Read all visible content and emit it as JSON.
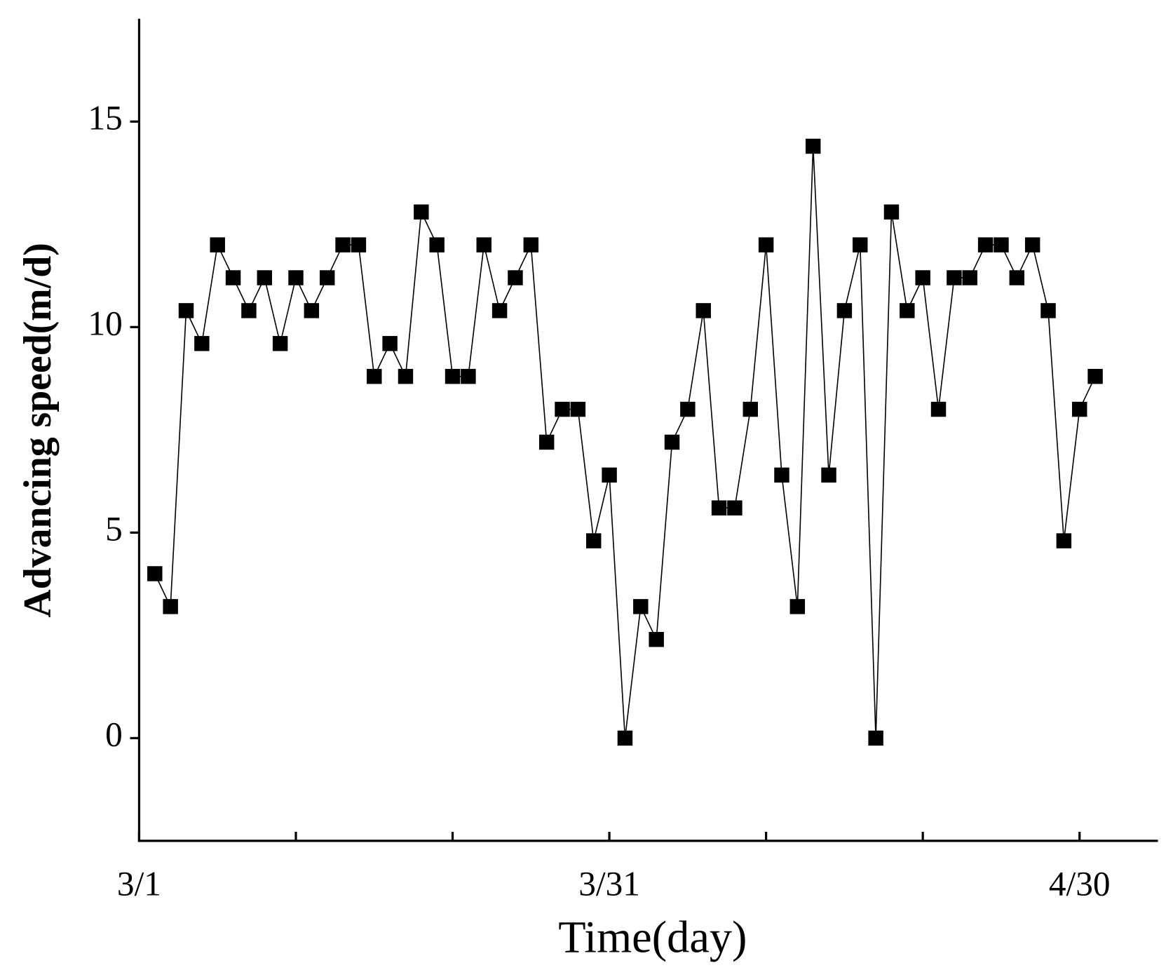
{
  "chart_data": {
    "type": "line",
    "x_label": "Time(day)",
    "y_label": "Advancing speed(m/d)",
    "x": [
      2,
      3,
      4,
      5,
      6,
      7,
      8,
      9,
      10,
      11,
      12,
      13,
      14,
      15,
      16,
      17,
      18,
      19,
      20,
      21,
      22,
      23,
      24,
      25,
      26,
      27,
      28,
      29,
      30,
      31,
      32,
      33,
      34,
      35,
      36,
      37,
      38,
      39,
      40,
      41,
      42,
      43,
      44,
      45,
      46,
      47,
      48,
      49,
      50,
      51,
      52,
      53,
      54,
      55,
      56,
      57,
      58,
      59,
      60,
      61,
      62
    ],
    "series": [
      {
        "name": "Advancing speed",
        "color": "#000000",
        "values": [
          4.0,
          3.2,
          10.4,
          9.6,
          12.0,
          11.2,
          10.4,
          11.2,
          9.6,
          11.2,
          10.4,
          11.2,
          12.0,
          12.0,
          8.8,
          9.6,
          8.8,
          12.8,
          12.0,
          8.8,
          8.8,
          12.0,
          10.4,
          11.2,
          12.0,
          7.2,
          8.0,
          8.0,
          4.8,
          6.4,
          0,
          3.2,
          2.4,
          7.2,
          8.0,
          10.4,
          5.6,
          5.6,
          8.0,
          12.0,
          6.4,
          3.2,
          14.4,
          6.4,
          10.4,
          12.0,
          0,
          12.8,
          10.4,
          11.2,
          8.0,
          11.2,
          11.2,
          12.0,
          12.0,
          11.2,
          12.0,
          10.4,
          4.8,
          8.0,
          8.8
        ]
      }
    ],
    "xlim": [
      1,
      66
    ],
    "xticks": [
      {
        "value": 1,
        "label": "3/1"
      },
      {
        "value": 31,
        "label": "3/31"
      },
      {
        "value": 61,
        "label": "4/30"
      }
    ],
    "x_minor_ticks": [
      11,
      21,
      41,
      51
    ],
    "ylim": [
      -2.5,
      17.5
    ],
    "yticks": [
      0,
      5,
      10,
      15
    ],
    "grid": false
  }
}
